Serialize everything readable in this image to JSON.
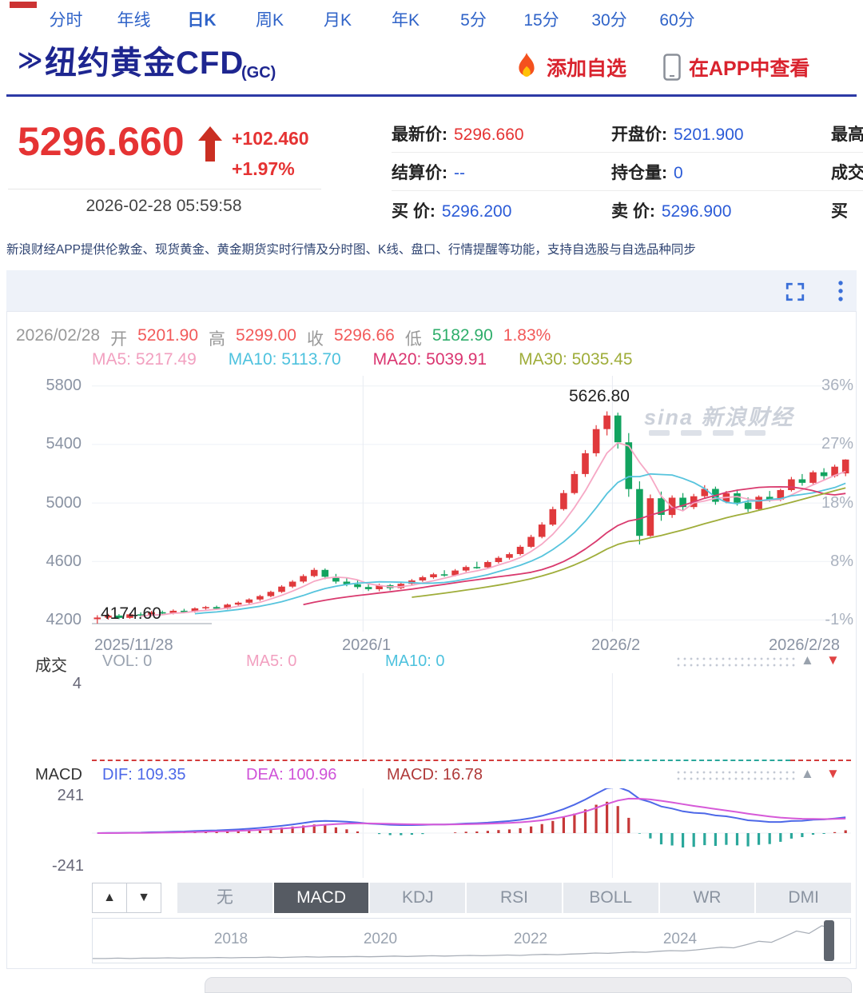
{
  "header": {
    "chevron": "≫",
    "title": "纽约黄金CFD",
    "symbol": "(GC)",
    "add_watchlist": "添加自选",
    "view_in_app": "在APP中查看"
  },
  "quote": {
    "price": "5296.660",
    "change": "+102.460",
    "change_pct": "+1.97%",
    "timestamp": "2026-02-28 05:59:58",
    "latest_label": "最新价:",
    "latest_value": "5296.660",
    "open_label": "开盘价:",
    "open_value": "5201.900",
    "high_label": "最高",
    "settle_label": "结算价:",
    "settle_value": "--",
    "oi_label": "持仓量:",
    "oi_value": "0",
    "turnover_label": "成交",
    "bid_label": "买 价:",
    "bid_value": "5296.200",
    "ask_label": "卖 价:",
    "ask_value": "5296.900",
    "buy_label": "买"
  },
  "notice": "新浪财经APP提供伦敦金、现货黄金、黄金期货实时行情及分时图、K线、盘口、行情提醒等功能，支持自选股与自选品种同步",
  "tabs": [
    "分时",
    "年线",
    "日K",
    "周K",
    "月K",
    "年K",
    "5分",
    "15分",
    "30分",
    "60分"
  ],
  "ohlc_bar": {
    "date": "2026/02/28",
    "open_label": "开",
    "open": "5201.90",
    "high_label": "高",
    "high": "5299.00",
    "close_label": "收",
    "close": "5296.66",
    "low_label": "低",
    "low": "5182.90",
    "pct": "1.83%"
  },
  "ma_bar": {
    "ma5": "MA5: 5217.49",
    "ma10": "MA10: 5113.70",
    "ma20": "MA20: 5039.91",
    "ma30": "MA30: 5035.45"
  },
  "main_chart": {
    "y_labels": [
      "5800",
      "5400",
      "5000",
      "4600",
      "4200"
    ],
    "right_labels": [
      "36%",
      "27%",
      "18%",
      "8%",
      "-1%"
    ],
    "high_annotation": "5626.80",
    "low_annotation": "4174.60",
    "x_labels": [
      "2025/11/28",
      "2026/1",
      "2026/2",
      "2026/2/28"
    ],
    "watermark": "sina 新浪财经"
  },
  "volume_panel": {
    "title": "成交",
    "vol": "VOL: 0",
    "ma5": "MA5: 0",
    "ma10": "MA10: 0",
    "axis_label": "4"
  },
  "macd_panel": {
    "title": "MACD",
    "dif": "DIF: 109.35",
    "dea": "DEA: 100.96",
    "macd": "MACD: 16.78",
    "axis_top": "241",
    "axis_bottom": "-241"
  },
  "indicator_bar": {
    "up": "▲",
    "down": "▼",
    "buttons": [
      "无",
      "MACD",
      "KDJ",
      "RSI",
      "BOLL",
      "WR",
      "DMI"
    ],
    "active_index": 1
  },
  "timeline": {
    "years": [
      "2018",
      "2020",
      "2022",
      "2024"
    ]
  },
  "colors": {
    "up": "#e0393c",
    "down": "#12a35f",
    "accent_red": "#d9232e",
    "price_red": "#e53333",
    "link_blue": "#2b5bd7",
    "navy": "#1e2690",
    "ma5": "#f6a8c5",
    "ma10": "#57c4dd",
    "ma20": "#d93a6e",
    "ma30": "#9fad3a",
    "dif": "#4d68e8",
    "dea": "#d65ad8",
    "hist_pos": "#c63838",
    "hist_neg": "#2aa79b"
  },
  "chart_data": {
    "type": "candlestick",
    "title": "纽约黄金CFD (GC) 日K",
    "date_range": [
      "2025/11/28",
      "2026/2/28"
    ],
    "last_ohlc": {
      "open": 5201.9,
      "high": 5299.0,
      "low": 5182.9,
      "close": 5296.66,
      "pct": "1.83%"
    },
    "ohlc": [
      [
        4205,
        4232,
        4174.6,
        4216
      ],
      [
        4216,
        4242,
        4202,
        4230
      ],
      [
        4230,
        4240,
        4206,
        4214
      ],
      [
        4214,
        4246,
        4208,
        4238
      ],
      [
        4238,
        4252,
        4222,
        4231
      ],
      [
        4231,
        4262,
        4226,
        4253
      ],
      [
        4253,
        4264,
        4236,
        4244
      ],
      [
        4244,
        4272,
        4238,
        4263
      ],
      [
        4263,
        4276,
        4248,
        4256
      ],
      [
        4256,
        4286,
        4250,
        4279
      ],
      [
        4279,
        4296,
        4263,
        4288
      ],
      [
        4288,
        4298,
        4268,
        4277
      ],
      [
        4277,
        4312,
        4272,
        4305
      ],
      [
        4305,
        4326,
        4292,
        4318
      ],
      [
        4318,
        4348,
        4308,
        4340
      ],
      [
        4340,
        4372,
        4330,
        4363
      ],
      [
        4363,
        4400,
        4355,
        4392
      ],
      [
        4392,
        4438,
        4384,
        4428
      ],
      [
        4428,
        4472,
        4418,
        4462
      ],
      [
        4462,
        4512,
        4452,
        4500
      ],
      [
        4500,
        4556,
        4492,
        4542
      ],
      [
        4542,
        4552,
        4478,
        4495
      ],
      [
        4495,
        4515,
        4448,
        4462
      ],
      [
        4462,
        4488,
        4430,
        4444
      ],
      [
        4444,
        4470,
        4412,
        4425
      ],
      [
        4425,
        4452,
        4398,
        4410
      ],
      [
        4410,
        4448,
        4396,
        4438
      ],
      [
        4438,
        4446,
        4402,
        4418
      ],
      [
        4418,
        4455,
        4410,
        4447
      ],
      [
        4447,
        4480,
        4438,
        4470
      ],
      [
        4470,
        4502,
        4460,
        4492
      ],
      [
        4492,
        4522,
        4482,
        4512
      ],
      [
        4512,
        4540,
        4495,
        4505
      ],
      [
        4505,
        4548,
        4498,
        4538
      ],
      [
        4538,
        4572,
        4528,
        4562
      ],
      [
        4562,
        4598,
        4550,
        4560
      ],
      [
        4560,
        4606,
        4552,
        4596
      ],
      [
        4596,
        4636,
        4586,
        4625
      ],
      [
        4625,
        4662,
        4612,
        4650
      ],
      [
        4650,
        4712,
        4640,
        4700
      ],
      [
        4700,
        4782,
        4692,
        4768
      ],
      [
        4768,
        4868,
        4758,
        4852
      ],
      [
        4852,
        4975,
        4842,
        4958
      ],
      [
        4958,
        5088,
        4948,
        5068
      ],
      [
        5068,
        5218,
        5058,
        5198
      ],
      [
        5198,
        5362,
        5178,
        5340
      ],
      [
        5340,
        5532,
        5318,
        5505
      ],
      [
        5505,
        5626.8,
        5462,
        5598
      ],
      [
        5598,
        5618,
        5372,
        5415
      ],
      [
        5415,
        5478,
        5042,
        5095
      ],
      [
        5095,
        5148,
        4716,
        4775
      ],
      [
        4775,
        5058,
        4768,
        5032
      ],
      [
        5032,
        5078,
        4878,
        4918
      ],
      [
        4918,
        5052,
        4898,
        5036
      ],
      [
        5036,
        5068,
        4948,
        4972
      ],
      [
        4972,
        5062,
        4958,
        5046
      ],
      [
        5046,
        5122,
        5032,
        5096
      ],
      [
        5096,
        5112,
        4988,
        5008
      ],
      [
        5008,
        5082,
        4998,
        5066
      ],
      [
        5066,
        5092,
        4982,
        5002
      ],
      [
        5002,
        5038,
        4938,
        4958
      ],
      [
        4958,
        5052,
        4948,
        5042
      ],
      [
        5042,
        5082,
        5008,
        5022
      ],
      [
        5022,
        5098,
        5012,
        5088
      ],
      [
        5088,
        5178,
        5078,
        5162
      ],
      [
        5162,
        5198,
        5118,
        5138
      ],
      [
        5138,
        5222,
        5128,
        5210
      ],
      [
        5210,
        5238,
        5158,
        5184
      ],
      [
        5184,
        5262,
        5174,
        5248
      ],
      [
        5201.9,
        5299,
        5182.9,
        5296.66
      ]
    ],
    "y_gridlines": [
      5800,
      5400,
      5000,
      4600,
      4200
    ],
    "right_axis_pct": [
      "36%",
      "27%",
      "18%",
      "8%",
      "-1%"
    ],
    "y_range": [
      4120,
      5870
    ],
    "x_gridline_indices": [
      25,
      48
    ],
    "x_gridline_labels": [
      "2026/1",
      "2026/2"
    ],
    "high_marker": 5626.8,
    "high_marker_index": 47,
    "low_marker": 4174.6,
    "ma_periods": [
      5,
      10,
      20,
      30
    ],
    "volumes_all_zero": true,
    "macd": {
      "fast": 12,
      "slow": 26,
      "signal": 9,
      "y_range": [
        -260,
        260
      ],
      "dif": 109.35,
      "dea": 100.96,
      "macd": 16.78
    },
    "nav_sparkline": [
      0.05,
      0.05,
      0.06,
      0.05,
      0.06,
      0.06,
      0.07,
      0.06,
      0.07,
      0.07,
      0.08,
      0.07,
      0.08,
      0.08,
      0.09,
      0.08,
      0.09,
      0.1,
      0.09,
      0.1,
      0.1,
      0.11,
      0.1,
      0.11,
      0.12,
      0.11,
      0.12,
      0.13,
      0.12,
      0.13,
      0.14,
      0.13,
      0.14,
      0.15,
      0.14,
      0.16,
      0.17,
      0.16,
      0.18,
      0.19,
      0.21,
      0.2,
      0.22,
      0.24,
      0.23,
      0.26,
      0.28,
      0.27,
      0.3,
      0.34,
      0.38,
      0.36,
      0.45,
      0.55,
      0.52,
      0.68,
      0.85,
      0.78,
      1.0,
      0.92
    ],
    "nav_years": [
      "2018",
      "2020",
      "2022",
      "2024"
    ]
  }
}
